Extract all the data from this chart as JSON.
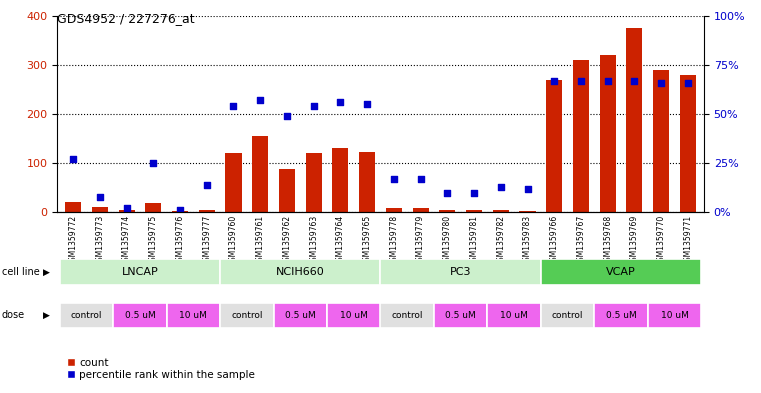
{
  "title": "GDS4952 / 227276_at",
  "samples": [
    "GSM1359772",
    "GSM1359773",
    "GSM1359774",
    "GSM1359775",
    "GSM1359776",
    "GSM1359777",
    "GSM1359760",
    "GSM1359761",
    "GSM1359762",
    "GSM1359763",
    "GSM1359764",
    "GSM1359765",
    "GSM1359778",
    "GSM1359779",
    "GSM1359780",
    "GSM1359781",
    "GSM1359782",
    "GSM1359783",
    "GSM1359766",
    "GSM1359767",
    "GSM1359768",
    "GSM1359769",
    "GSM1359770",
    "GSM1359771"
  ],
  "counts": [
    20,
    10,
    5,
    18,
    3,
    5,
    120,
    155,
    88,
    120,
    130,
    122,
    8,
    8,
    5,
    5,
    5,
    3,
    270,
    310,
    320,
    375,
    290,
    280
  ],
  "percentiles": [
    27,
    8,
    2,
    25,
    1,
    14,
    54,
    57,
    49,
    54,
    56,
    55,
    17,
    17,
    10,
    10,
    13,
    12,
    67,
    67,
    67,
    67,
    66,
    66
  ],
  "bar_color": "#cc2200",
  "point_color": "#0000cc",
  "ylim_left": [
    0,
    400
  ],
  "ylim_right": [
    0,
    100
  ],
  "yticks_left": [
    0,
    100,
    200,
    300,
    400
  ],
  "yticks_right": [
    0,
    25,
    50,
    75,
    100
  ],
  "ytick_labels_right": [
    "0%",
    "25%",
    "50%",
    "75%",
    "100%"
  ],
  "bg_color": "#ffffff",
  "plot_bg": "#ffffff",
  "cl_boundaries": [
    [
      0,
      5,
      "LNCAP",
      "#ccf0cc"
    ],
    [
      6,
      11,
      "NCIH660",
      "#ccf0cc"
    ],
    [
      12,
      17,
      "PC3",
      "#ccf0cc"
    ],
    [
      18,
      23,
      "VCAP",
      "#55cc55"
    ]
  ],
  "dose_groups": [
    [
      0,
      1,
      "control",
      "#e0e0e0"
    ],
    [
      2,
      3,
      "0.5 uM",
      "#ee66ee"
    ],
    [
      4,
      5,
      "10 uM",
      "#ee66ee"
    ],
    [
      6,
      7,
      "control",
      "#e0e0e0"
    ],
    [
      8,
      9,
      "0.5 uM",
      "#ee66ee"
    ],
    [
      10,
      11,
      "10 uM",
      "#ee66ee"
    ],
    [
      12,
      13,
      "control",
      "#e0e0e0"
    ],
    [
      14,
      15,
      "0.5 uM",
      "#ee66ee"
    ],
    [
      16,
      17,
      "10 uM",
      "#ee66ee"
    ],
    [
      18,
      19,
      "control",
      "#e0e0e0"
    ],
    [
      20,
      21,
      "0.5 uM",
      "#ee66ee"
    ],
    [
      22,
      23,
      "10 uM",
      "#ee66ee"
    ]
  ]
}
